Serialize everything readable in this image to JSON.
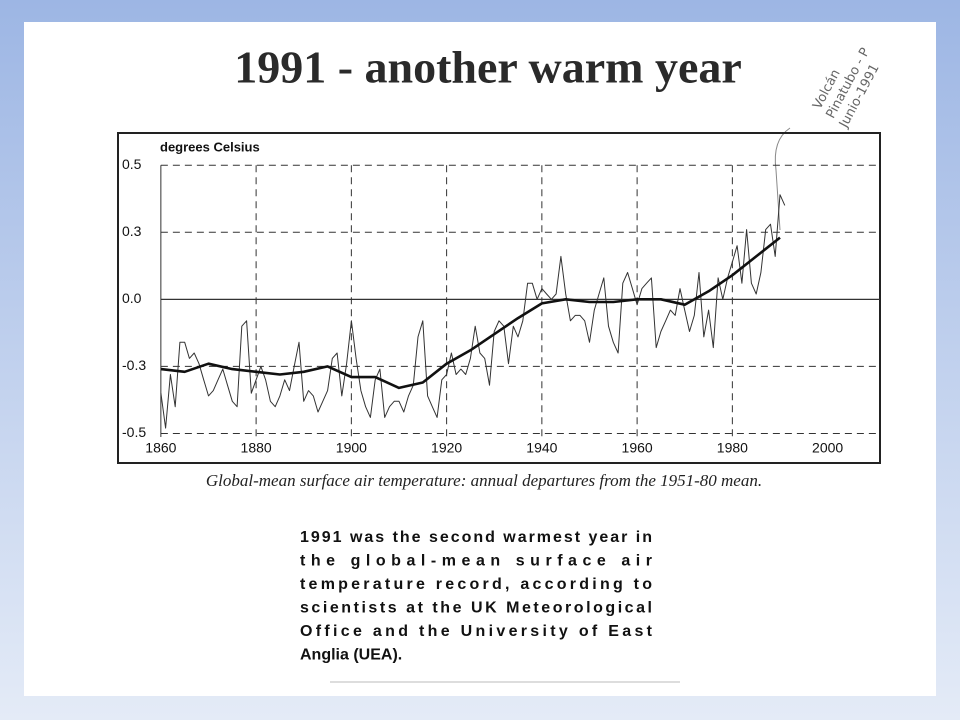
{
  "title": "1991 - another warm year",
  "handwritten_note": [
    "Volcán",
    "Pinatubo - P",
    "Junio-1991"
  ],
  "chart_data": {
    "type": "line",
    "ylabel": "degrees Celsius",
    "x": [
      1860,
      1861,
      1862,
      1863,
      1864,
      1865,
      1866,
      1867,
      1868,
      1869,
      1870,
      1871,
      1872,
      1873,
      1874,
      1875,
      1876,
      1877,
      1878,
      1879,
      1880,
      1881,
      1882,
      1883,
      1884,
      1885,
      1886,
      1887,
      1888,
      1889,
      1890,
      1891,
      1892,
      1893,
      1894,
      1895,
      1896,
      1897,
      1898,
      1899,
      1900,
      1901,
      1902,
      1903,
      1904,
      1905,
      1906,
      1907,
      1908,
      1909,
      1910,
      1911,
      1912,
      1913,
      1914,
      1915,
      1916,
      1917,
      1918,
      1919,
      1920,
      1921,
      1922,
      1923,
      1924,
      1925,
      1926,
      1927,
      1928,
      1929,
      1930,
      1931,
      1932,
      1933,
      1934,
      1935,
      1936,
      1937,
      1938,
      1939,
      1940,
      1941,
      1942,
      1943,
      1944,
      1945,
      1946,
      1947,
      1948,
      1949,
      1950,
      1951,
      1952,
      1953,
      1954,
      1955,
      1956,
      1957,
      1958,
      1959,
      1960,
      1961,
      1962,
      1963,
      1964,
      1965,
      1966,
      1967,
      1968,
      1969,
      1970,
      1971,
      1972,
      1973,
      1974,
      1975,
      1976,
      1977,
      1978,
      1979,
      1980,
      1981,
      1982,
      1983,
      1984,
      1985,
      1986,
      1987,
      1988,
      1989,
      1990,
      1991
    ],
    "series": [
      {
        "color": "#333333",
        "values": [
          -0.35,
          -0.48,
          -0.28,
          -0.4,
          -0.16,
          -0.16,
          -0.22,
          -0.2,
          -0.24,
          -0.3,
          -0.36,
          -0.34,
          -0.3,
          -0.26,
          -0.32,
          -0.38,
          -0.4,
          -0.1,
          -0.08,
          -0.35,
          -0.3,
          -0.25,
          -0.3,
          -0.38,
          -0.4,
          -0.36,
          -0.3,
          -0.34,
          -0.25,
          -0.16,
          -0.38,
          -0.34,
          -0.36,
          -0.42,
          -0.38,
          -0.34,
          -0.22,
          -0.2,
          -0.36,
          -0.24,
          -0.08,
          -0.22,
          -0.34,
          -0.4,
          -0.44,
          -0.3,
          -0.26,
          -0.44,
          -0.4,
          -0.38,
          -0.38,
          -0.42,
          -0.36,
          -0.32,
          -0.14,
          -0.08,
          -0.36,
          -0.4,
          -0.44,
          -0.3,
          -0.28,
          -0.2,
          -0.28,
          -0.26,
          -0.28,
          -0.22,
          -0.1,
          -0.2,
          -0.22,
          -0.32,
          -0.12,
          -0.08,
          -0.1,
          -0.24,
          -0.1,
          -0.14,
          -0.08,
          0.06,
          0.06,
          0.0,
          0.04,
          0.02,
          0.0,
          0.02,
          0.16,
          0.02,
          -0.08,
          -0.06,
          -0.06,
          -0.08,
          -0.16,
          -0.04,
          0.02,
          0.08,
          -0.1,
          -0.16,
          -0.2,
          0.06,
          0.1,
          0.04,
          -0.02,
          0.04,
          0.06,
          0.08,
          -0.18,
          -0.12,
          -0.08,
          -0.04,
          -0.06,
          0.04,
          -0.04,
          -0.12,
          -0.06,
          0.1,
          -0.14,
          -0.04,
          -0.18,
          0.08,
          0.0,
          0.08,
          0.14,
          0.2,
          0.06,
          0.26,
          0.06,
          0.02,
          0.1,
          0.26,
          0.28,
          0.16,
          0.39,
          0.35
        ]
      },
      {
        "color": "#111111",
        "x": [
          1860,
          1865,
          1870,
          1875,
          1880,
          1885,
          1890,
          1895,
          1900,
          1905,
          1910,
          1915,
          1920,
          1925,
          1930,
          1935,
          1940,
          1945,
          1950,
          1955,
          1960,
          1965,
          1970,
          1975,
          1980,
          1985,
          1990
        ],
        "values": [
          -0.26,
          -0.27,
          -0.24,
          -0.26,
          -0.27,
          -0.28,
          -0.27,
          -0.25,
          -0.29,
          -0.29,
          -0.33,
          -0.31,
          -0.24,
          -0.19,
          -0.13,
          -0.07,
          -0.015,
          0.0,
          -0.01,
          -0.01,
          0.0,
          0.0,
          -0.02,
          0.03,
          0.09,
          0.16,
          0.23
        ]
      }
    ],
    "xlim": [
      1851,
      2011
    ],
    "xticks": [
      1860,
      1880,
      1900,
      1920,
      1940,
      1960,
      1980,
      2000
    ],
    "ylim": [
      -0.61,
      0.62
    ],
    "yticks": [
      0.5,
      {
        "value": 0.25,
        "label": "0.3"
      },
      {
        "value": 0,
        "label": "0.0"
      },
      {
        "value": -0.25,
        "label": "-0.3"
      },
      -0.5
    ],
    "grid": true
  },
  "caption": "Global-mean surface air temperature: annual departures from the 1951-80 mean.",
  "body_lines": [
    "1991 was the second warmest year in",
    "the global-mean surface air",
    "temperature record, according to",
    "scientists at the UK Meteorological",
    "Office and the University of East",
    "Anglia (UEA)."
  ]
}
